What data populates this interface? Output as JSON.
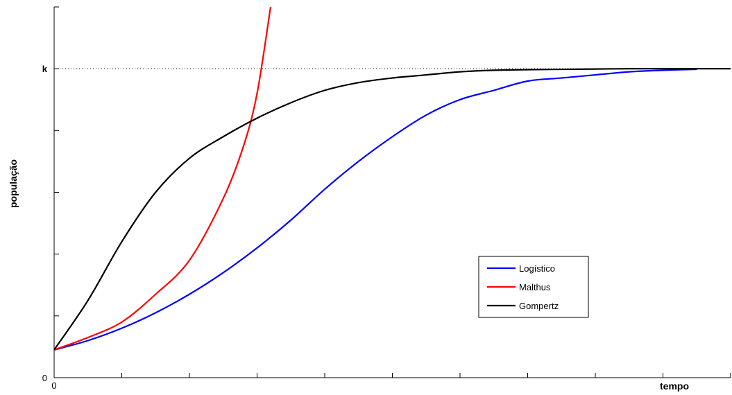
{
  "chart_data": {
    "type": "line",
    "title": "",
    "xlabel": "tempo",
    "ylabel": "população",
    "xlim": [
      0,
      10
    ],
    "ylim": [
      0,
      1.2
    ],
    "x_tick_labels": [
      {
        "value": 0,
        "label": "0"
      }
    ],
    "y_tick_labels": [
      {
        "value": 0,
        "label": "0"
      },
      {
        "value": 1,
        "label": "k"
      }
    ],
    "x_ticks": [
      0,
      1,
      2,
      3,
      4,
      5,
      6,
      7,
      8,
      9,
      10
    ],
    "y_ticks": [
      0,
      0.2,
      0.4,
      0.6,
      0.8,
      1,
      1.2
    ],
    "reference_line": {
      "y": 1,
      "style": "dotted"
    },
    "legend_position": "lower-right",
    "grid": false,
    "series": [
      {
        "name": "Logístico",
        "color": "#0000ff",
        "x": [
          0,
          0.5,
          1,
          1.5,
          2,
          2.5,
          3,
          3.5,
          4,
          4.5,
          5,
          5.5,
          6,
          6.5,
          7,
          7.5,
          8,
          8.5,
          9,
          9.5
        ],
        "y": [
          0.09,
          0.12,
          0.16,
          0.21,
          0.27,
          0.34,
          0.42,
          0.51,
          0.61,
          0.7,
          0.78,
          0.85,
          0.9,
          0.93,
          0.96,
          0.97,
          0.98,
          0.99,
          0.995,
          0.998
        ]
      },
      {
        "name": "Malthus",
        "color": "#ff0000",
        "x": [
          0,
          0.5,
          1,
          1.5,
          2,
          2.5,
          2.8,
          3,
          3.2
        ],
        "y": [
          0.09,
          0.13,
          0.18,
          0.27,
          0.38,
          0.58,
          0.75,
          0.92,
          1.2
        ]
      },
      {
        "name": "Gompertz",
        "color": "#000000",
        "x": [
          0,
          0.5,
          1,
          1.5,
          2,
          2.5,
          3,
          3.5,
          4,
          4.5,
          5,
          5.5,
          6,
          6.5,
          7,
          7.5,
          8,
          8.5,
          9,
          9.5,
          10
        ],
        "y": [
          0.09,
          0.25,
          0.44,
          0.6,
          0.71,
          0.78,
          0.84,
          0.89,
          0.93,
          0.955,
          0.97,
          0.98,
          0.99,
          0.995,
          0.997,
          0.998,
          0.999,
          1,
          1,
          1,
          1
        ]
      }
    ]
  }
}
